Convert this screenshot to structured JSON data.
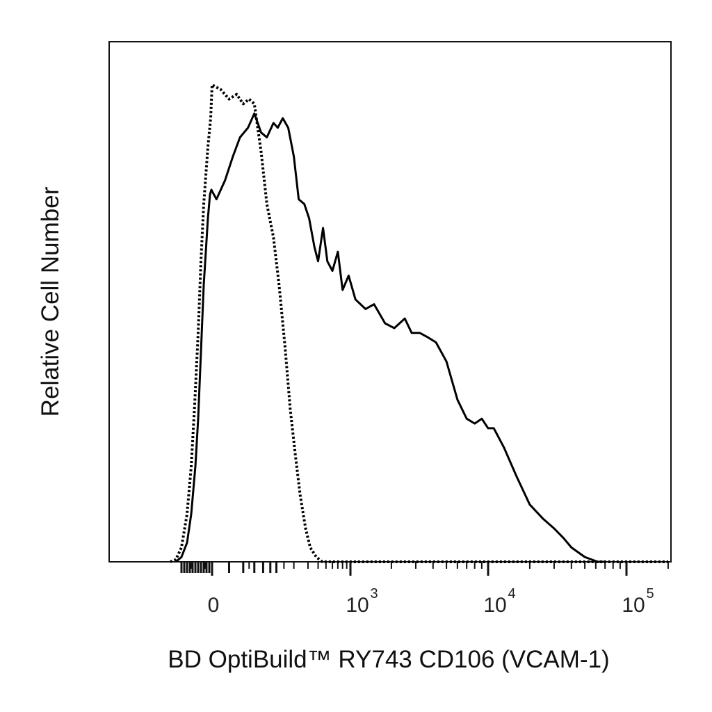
{
  "chart_data": {
    "type": "line",
    "title": "",
    "xlabel": "BD OptiBuild™ RY743 CD106 (VCAM-1)",
    "ylabel": "Relative Cell Number",
    "x_scale": "logicle (biexponential)",
    "xlim": [
      -300,
      200000
    ],
    "ylim": [
      0,
      100
    ],
    "x_tick_labels": [
      {
        "value": 0,
        "text": "0"
      },
      {
        "value": 1000,
        "base": "10",
        "exp": "3"
      },
      {
        "value": 10000,
        "base": "10",
        "exp": "4"
      },
      {
        "value": 100000,
        "base": "10",
        "exp": "5"
      }
    ],
    "grid": false,
    "legend": "none",
    "series": [
      {
        "style": "solid",
        "color": "#000000",
        "points": [
          [
            -260,
            0
          ],
          [
            -220,
            1
          ],
          [
            -180,
            4
          ],
          [
            -150,
            10
          ],
          [
            -120,
            20
          ],
          [
            -100,
            30
          ],
          [
            -80,
            44
          ],
          [
            -60,
            58
          ],
          [
            -45,
            65
          ],
          [
            -30,
            72
          ],
          [
            -15,
            77
          ],
          [
            -5,
            78
          ],
          [
            5,
            76
          ],
          [
            15,
            80
          ],
          [
            25,
            85
          ],
          [
            35,
            89
          ],
          [
            48,
            91
          ],
          [
            60,
            94
          ],
          [
            75,
            90
          ],
          [
            90,
            89
          ],
          [
            110,
            92
          ],
          [
            125,
            91
          ],
          [
            145,
            93
          ],
          [
            170,
            91
          ],
          [
            200,
            85
          ],
          [
            230,
            76
          ],
          [
            270,
            75
          ],
          [
            310,
            72
          ],
          [
            360,
            66
          ],
          [
            400,
            63
          ],
          [
            460,
            70
          ],
          [
            520,
            63
          ],
          [
            600,
            61
          ],
          [
            700,
            65
          ],
          [
            800,
            57
          ],
          [
            950,
            60
          ],
          [
            1100,
            55
          ],
          [
            1300,
            53
          ],
          [
            1500,
            54
          ],
          [
            1800,
            50
          ],
          [
            2100,
            49
          ],
          [
            2500,
            51
          ],
          [
            2800,
            48
          ],
          [
            3200,
            48
          ],
          [
            3700,
            47
          ],
          [
            4200,
            46
          ],
          [
            5000,
            42
          ],
          [
            6000,
            34
          ],
          [
            7000,
            30
          ],
          [
            8000,
            29
          ],
          [
            9000,
            30
          ],
          [
            10000,
            28
          ],
          [
            11000,
            28
          ],
          [
            13000,
            24
          ],
          [
            16000,
            18
          ],
          [
            20000,
            12
          ],
          [
            25000,
            9
          ],
          [
            30000,
            7
          ],
          [
            35000,
            5
          ],
          [
            40000,
            3
          ],
          [
            50000,
            1
          ],
          [
            62000,
            0
          ],
          [
            70000,
            0
          ]
        ]
      },
      {
        "style": "dotted",
        "color": "#000000",
        "points": [
          [
            -300,
            0
          ],
          [
            -260,
            0.5
          ],
          [
            -220,
            3
          ],
          [
            -180,
            10
          ],
          [
            -150,
            20
          ],
          [
            -125,
            33
          ],
          [
            -100,
            48
          ],
          [
            -80,
            63
          ],
          [
            -60,
            75
          ],
          [
            -45,
            81
          ],
          [
            -30,
            87
          ],
          [
            -20,
            90
          ],
          [
            -10,
            93
          ],
          [
            0,
            100
          ],
          [
            10,
            99
          ],
          [
            20,
            97
          ],
          [
            30,
            98
          ],
          [
            40,
            96
          ],
          [
            50,
            97
          ],
          [
            60,
            96
          ],
          [
            75,
            86
          ],
          [
            90,
            75
          ],
          [
            110,
            68
          ],
          [
            130,
            58
          ],
          [
            155,
            45
          ],
          [
            180,
            32
          ],
          [
            210,
            22
          ],
          [
            240,
            14
          ],
          [
            280,
            7
          ],
          [
            320,
            3
          ],
          [
            380,
            1
          ],
          [
            450,
            0
          ],
          [
            700,
            0
          ],
          [
            200000,
            0
          ]
        ]
      }
    ]
  }
}
